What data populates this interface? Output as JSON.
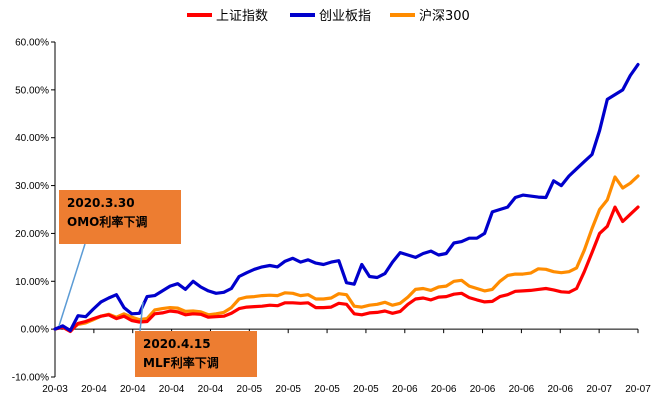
{
  "chart_data": {
    "type": "line",
    "title": "",
    "xlabel": "",
    "ylabel": "",
    "ylim": [
      -0.1,
      0.6
    ],
    "yticks": [
      "-10.00%",
      "0.00%",
      "10.00%",
      "20.00%",
      "30.00%",
      "40.00%",
      "50.00%",
      "60.00%"
    ],
    "ytick_values": [
      -0.1,
      0.0,
      0.1,
      0.2,
      0.3,
      0.4,
      0.5,
      0.6
    ],
    "xticks": [
      "20-03",
      "20-04",
      "20-04",
      "20-04",
      "20-04",
      "20-05",
      "20-05",
      "20-05",
      "20-05",
      "20-06",
      "20-06",
      "20-06",
      "20-06",
      "20-06",
      "20-07",
      "20-07"
    ],
    "legend_position": "top",
    "grid": false,
    "series": [
      {
        "name": "上证指数",
        "color": "#FF0000",
        "values": [
          0.0,
          0.004,
          -0.005,
          0.012,
          0.016,
          0.022,
          0.027,
          0.03,
          0.022,
          0.027,
          0.018,
          0.015,
          0.016,
          0.032,
          0.034,
          0.038,
          0.036,
          0.03,
          0.032,
          0.031,
          0.025,
          0.026,
          0.027,
          0.033,
          0.043,
          0.046,
          0.047,
          0.048,
          0.05,
          0.049,
          0.055,
          0.055,
          0.054,
          0.055,
          0.045,
          0.045,
          0.046,
          0.054,
          0.052,
          0.032,
          0.03,
          0.034,
          0.035,
          0.038,
          0.033,
          0.037,
          0.052,
          0.063,
          0.065,
          0.061,
          0.067,
          0.068,
          0.073,
          0.075,
          0.066,
          0.061,
          0.057,
          0.058,
          0.068,
          0.072,
          0.079,
          0.08,
          0.081,
          0.083,
          0.085,
          0.082,
          0.078,
          0.077,
          0.085,
          0.12,
          0.16,
          0.2,
          0.215,
          0.255,
          0.225,
          0.24,
          0.255
        ]
      },
      {
        "name": "创业板指",
        "color": "#0000CC",
        "values": [
          0.0,
          0.007,
          -0.003,
          0.028,
          0.026,
          0.042,
          0.057,
          0.065,
          0.072,
          0.045,
          0.032,
          0.033,
          0.068,
          0.07,
          0.08,
          0.09,
          0.095,
          0.083,
          0.1,
          0.088,
          0.08,
          0.075,
          0.077,
          0.085,
          0.11,
          0.118,
          0.125,
          0.13,
          0.133,
          0.13,
          0.142,
          0.148,
          0.14,
          0.145,
          0.138,
          0.135,
          0.14,
          0.143,
          0.097,
          0.094,
          0.135,
          0.11,
          0.108,
          0.116,
          0.14,
          0.16,
          0.155,
          0.15,
          0.158,
          0.163,
          0.155,
          0.158,
          0.18,
          0.183,
          0.19,
          0.19,
          0.2,
          0.245,
          0.25,
          0.255,
          0.275,
          0.28,
          0.278,
          0.276,
          0.275,
          0.31,
          0.3,
          0.32,
          0.335,
          0.35,
          0.365,
          0.415,
          0.48,
          0.49,
          0.5,
          0.53,
          0.553
        ]
      },
      {
        "name": "沪深300",
        "color": "#FF8C00",
        "values": [
          0.0,
          0.005,
          -0.002,
          0.01,
          0.013,
          0.02,
          0.027,
          0.031,
          0.025,
          0.032,
          0.025,
          0.02,
          0.022,
          0.04,
          0.043,
          0.045,
          0.044,
          0.037,
          0.038,
          0.036,
          0.03,
          0.032,
          0.035,
          0.045,
          0.063,
          0.067,
          0.068,
          0.07,
          0.071,
          0.07,
          0.076,
          0.075,
          0.07,
          0.072,
          0.063,
          0.063,
          0.065,
          0.074,
          0.072,
          0.048,
          0.046,
          0.05,
          0.052,
          0.056,
          0.05,
          0.054,
          0.067,
          0.083,
          0.085,
          0.081,
          0.088,
          0.09,
          0.1,
          0.102,
          0.09,
          0.085,
          0.08,
          0.083,
          0.1,
          0.112,
          0.115,
          0.115,
          0.117,
          0.126,
          0.125,
          0.12,
          0.118,
          0.12,
          0.128,
          0.165,
          0.21,
          0.25,
          0.27,
          0.318,
          0.295,
          0.305,
          0.32
        ]
      }
    ]
  },
  "annotations": [
    {
      "line1": "2020.3.30",
      "line2": "OMO利率下调"
    },
    {
      "line1": "2020.4.15",
      "line2": "MLF利率下调"
    }
  ]
}
